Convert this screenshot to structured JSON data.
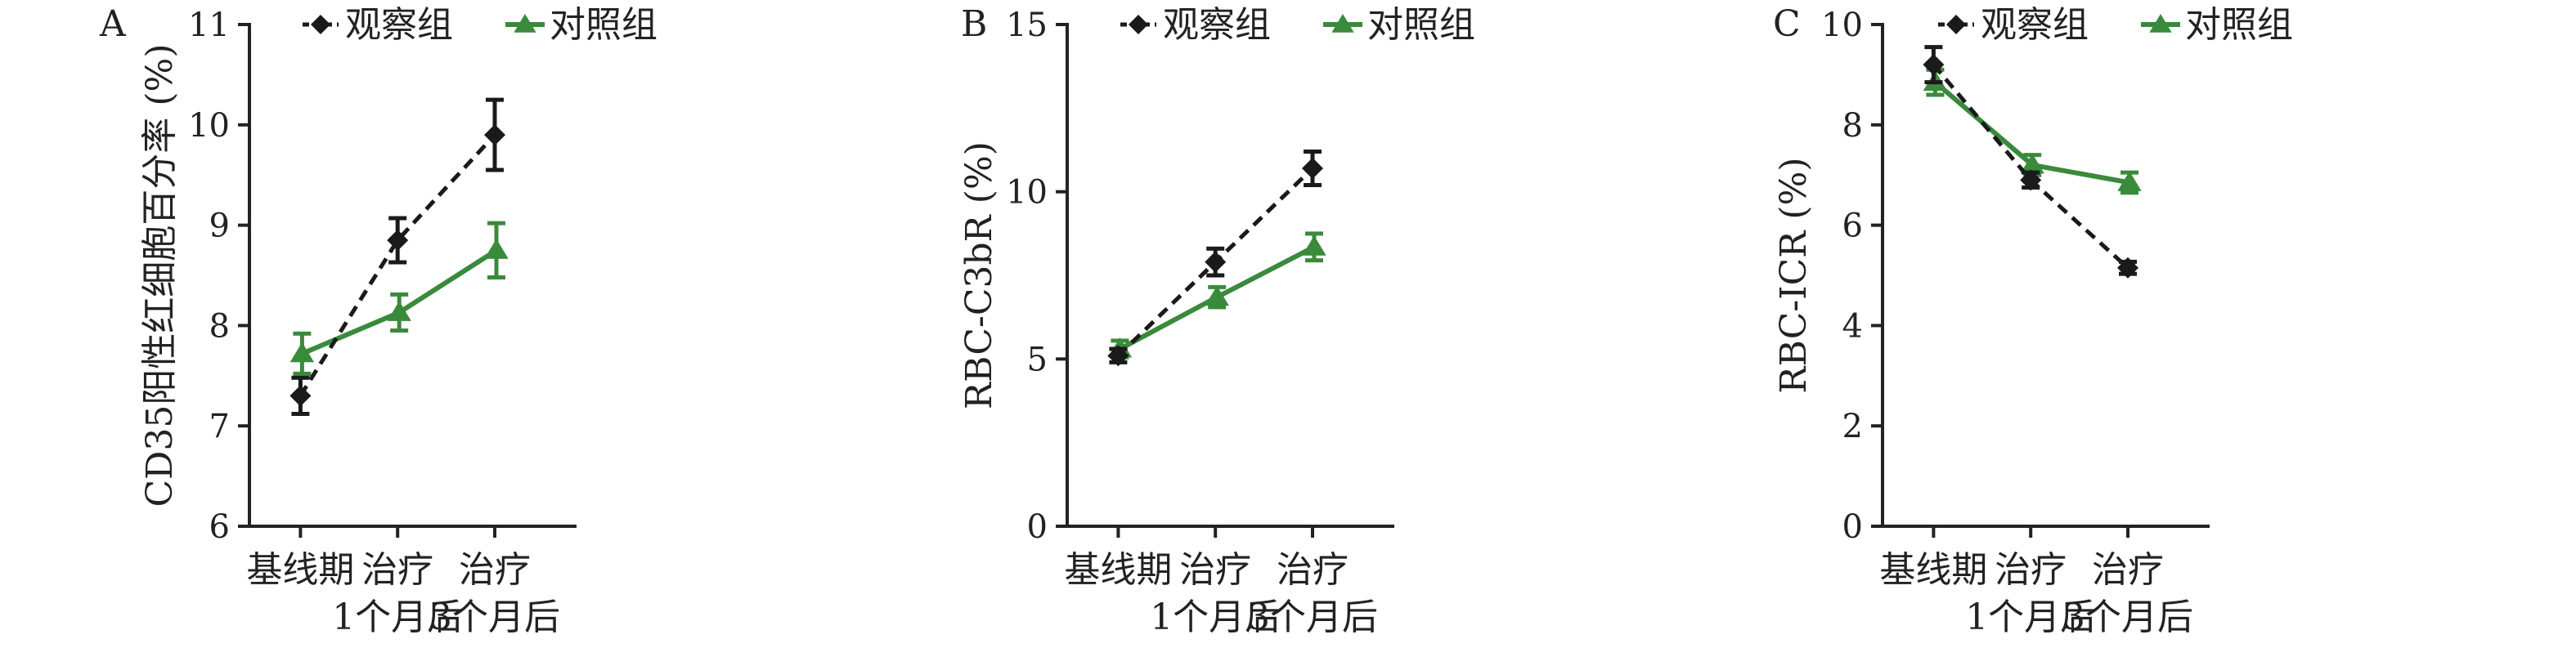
{
  "legend": {
    "observation": "观察组",
    "control": "对照组"
  },
  "colors": {
    "observation": "#1a1a1a",
    "control": "#3a8a3c",
    "axis": "#222222"
  },
  "chart_data": [
    {
      "type": "line",
      "panel": "A",
      "ylabel": "CD35阳性红细胞百分率 (%)",
      "ylim": [
        6,
        11
      ],
      "yticks": [
        "6",
        "7",
        "8",
        "9",
        "10",
        "11"
      ],
      "categories": [
        [
          "基线期"
        ],
        [
          "治疗",
          "1个月后"
        ],
        [
          "治疗",
          "3个月后"
        ]
      ],
      "series": [
        {
          "name": "观察组",
          "values": [
            7.3,
            8.85,
            9.9
          ],
          "err": [
            0.18,
            0.22,
            0.35
          ]
        },
        {
          "name": "对照组",
          "values": [
            7.72,
            8.13,
            8.75
          ],
          "err": [
            0.2,
            0.18,
            0.27
          ]
        }
      ]
    },
    {
      "type": "line",
      "panel": "B",
      "ylabel": "RBC-C3bR (%)",
      "ylim": [
        0,
        15
      ],
      "yticks": [
        "0",
        "5",
        "10",
        "15"
      ],
      "categories": [
        [
          "基线期"
        ],
        [
          "治疗",
          "1个月后"
        ],
        [
          "治疗",
          "3个月后"
        ]
      ],
      "series": [
        {
          "name": "观察组",
          "values": [
            5.1,
            7.9,
            10.7
          ],
          "err": [
            0.2,
            0.4,
            0.5
          ]
        },
        {
          "name": "对照组",
          "values": [
            5.3,
            6.85,
            8.35
          ],
          "err": [
            0.25,
            0.3,
            0.4
          ]
        }
      ]
    },
    {
      "type": "line",
      "panel": "C",
      "ylabel": "RBC-ICR (%)",
      "ylim": [
        0,
        10
      ],
      "yticks": [
        "0",
        "2",
        "4",
        "6",
        "8",
        "10"
      ],
      "categories": [
        [
          "基线期"
        ],
        [
          "治疗",
          "1个月后"
        ],
        [
          "治疗",
          "3个月后"
        ]
      ],
      "series": [
        {
          "name": "观察组",
          "values": [
            9.2,
            6.9,
            5.15
          ],
          "err": [
            0.35,
            0.15,
            0.12
          ]
        },
        {
          "name": "对照组",
          "values": [
            8.85,
            7.2,
            6.85
          ],
          "err": [
            0.25,
            0.2,
            0.2
          ]
        }
      ]
    }
  ]
}
